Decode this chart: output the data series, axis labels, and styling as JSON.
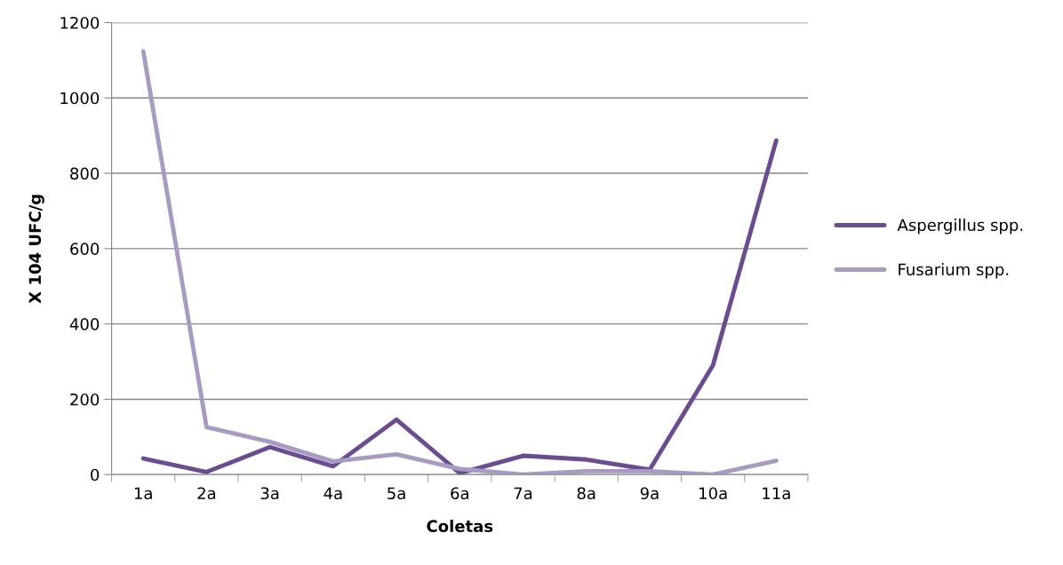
{
  "chart_data": {
    "type": "line",
    "xlabel": "Coletas",
    "ylabel": "X 104 UFC/g",
    "categories": [
      "1a",
      "2a",
      "3a",
      "4a",
      "5a",
      "6a",
      "7a",
      "8a",
      "9a",
      "10a",
      "11a"
    ],
    "series": [
      {
        "name": "Aspergillus spp.",
        "color": "#6a4c8f",
        "values": [
          43,
          7,
          73,
          22,
          146,
          4,
          50,
          40,
          13,
          290,
          887
        ]
      },
      {
        "name": "Fusarium spp.",
        "color": "#a99ac3",
        "values": [
          1124,
          126,
          87,
          35,
          54,
          15,
          0,
          9,
          9,
          0,
          37
        ]
      }
    ],
    "ylim": [
      0,
      1200
    ],
    "yticks": [
      0,
      200,
      400,
      600,
      800,
      1000,
      1200
    ],
    "grid": "y",
    "legend": "right",
    "marker": "none",
    "line_style": "solid"
  }
}
